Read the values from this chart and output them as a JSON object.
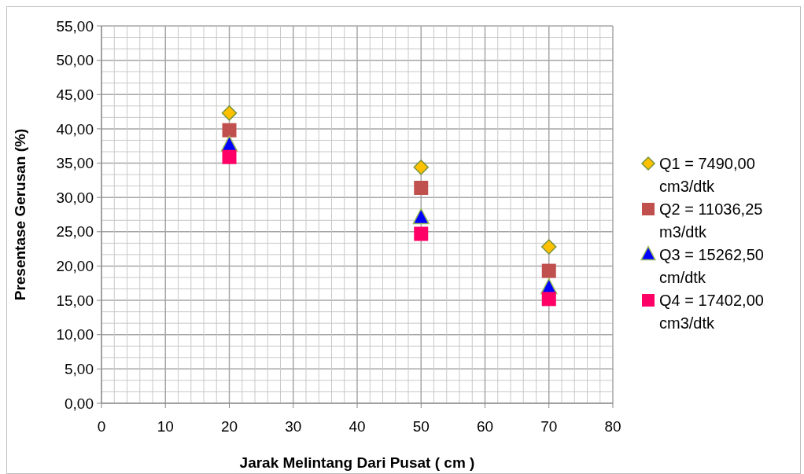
{
  "chart_data": {
    "type": "scatter",
    "xlabel": "Jarak Melintang Dari Pusat ( cm )",
    "ylabel": "Presentase Gerusan (%)",
    "x": [
      20,
      50,
      70
    ],
    "series": [
      {
        "name": "Q1 = 7490,00 cm3/dtk",
        "color": "#ffc000",
        "marker": "diamond",
        "values": [
          42.3,
          34.4,
          22.8
        ]
      },
      {
        "name": "Q2 = 11036,25 m3/dtk",
        "color": "#c0504d",
        "marker": "square",
        "values": [
          39.8,
          31.4,
          19.3
        ]
      },
      {
        "name": "Q3 = 15262,50 cm/dtk",
        "color": "#0000ff",
        "marker": "triangle",
        "values": [
          37.6,
          27.0,
          16.8
        ]
      },
      {
        "name": "Q4 = 17402,00 cm3/dtk",
        "color": "#ff0066",
        "marker": "square",
        "values": [
          35.9,
          24.7,
          15.2
        ]
      }
    ],
    "xlim": [
      0,
      80
    ],
    "xticks": [
      0,
      10,
      20,
      30,
      40,
      50,
      60,
      70,
      80
    ],
    "ylim": [
      0,
      55
    ],
    "yticks": [
      {
        "value": 0,
        "label": "0,00"
      },
      {
        "value": 5,
        "label": "5,00"
      },
      {
        "value": 10,
        "label": "10,00"
      },
      {
        "value": 15,
        "label": "15,00"
      },
      {
        "value": 20,
        "label": "20,00"
      },
      {
        "value": 25,
        "label": "25,00"
      },
      {
        "value": 30,
        "label": "30,00"
      },
      {
        "value": 35,
        "label": "35,00"
      },
      {
        "value": 40,
        "label": "40,00"
      },
      {
        "value": 45,
        "label": "45,00"
      },
      {
        "value": 50,
        "label": "50,00"
      },
      {
        "value": 55,
        "label": "55,00"
      }
    ],
    "grid": true,
    "legend": "right"
  }
}
